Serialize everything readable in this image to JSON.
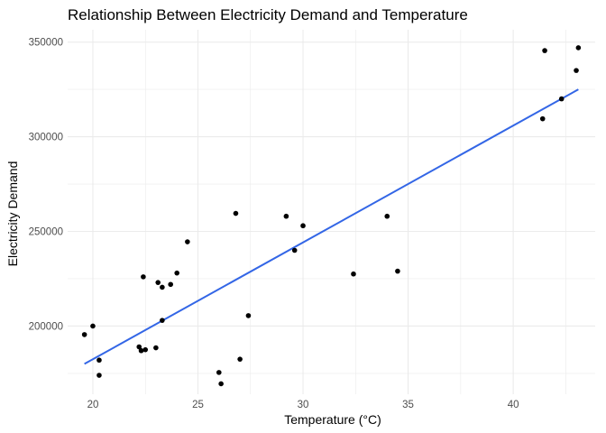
{
  "chart_data": {
    "type": "scatter",
    "title": "Relationship Between Electricity Demand and Temperature",
    "xlabel": "Temperature (°C)",
    "ylabel": "Electricity Demand",
    "xlim": [
      18.8,
      43.9
    ],
    "ylim": [
      164000,
      356500
    ],
    "x_ticks": [
      20,
      25,
      30,
      35,
      40
    ],
    "x_tick_labels": [
      "20",
      "25",
      "30",
      "35",
      "40"
    ],
    "y_ticks": [
      200000,
      250000,
      300000,
      350000
    ],
    "y_tick_labels": [
      "200000",
      "250000",
      "300000",
      "350000"
    ],
    "grid": true,
    "points": [
      {
        "x": 19.6,
        "y": 195500
      },
      {
        "x": 20.0,
        "y": 200000
      },
      {
        "x": 20.3,
        "y": 182000
      },
      {
        "x": 20.3,
        "y": 174000
      },
      {
        "x": 22.2,
        "y": 189000
      },
      {
        "x": 22.3,
        "y": 187000
      },
      {
        "x": 22.4,
        "y": 226000
      },
      {
        "x": 22.5,
        "y": 187500
      },
      {
        "x": 23.0,
        "y": 188500
      },
      {
        "x": 23.1,
        "y": 223000
      },
      {
        "x": 23.3,
        "y": 220500
      },
      {
        "x": 23.3,
        "y": 203000
      },
      {
        "x": 23.7,
        "y": 222000
      },
      {
        "x": 24.0,
        "y": 228000
      },
      {
        "x": 24.5,
        "y": 244500
      },
      {
        "x": 26.0,
        "y": 175500
      },
      {
        "x": 26.1,
        "y": 169500
      },
      {
        "x": 26.8,
        "y": 259500
      },
      {
        "x": 27.0,
        "y": 182500
      },
      {
        "x": 27.4,
        "y": 205500
      },
      {
        "x": 29.2,
        "y": 258000
      },
      {
        "x": 29.6,
        "y": 240000
      },
      {
        "x": 30.0,
        "y": 253000
      },
      {
        "x": 32.4,
        "y": 227500
      },
      {
        "x": 34.0,
        "y": 258000
      },
      {
        "x": 34.5,
        "y": 229000
      },
      {
        "x": 41.4,
        "y": 309500
      },
      {
        "x": 41.5,
        "y": 345500
      },
      {
        "x": 42.3,
        "y": 320000
      },
      {
        "x": 43.0,
        "y": 335000
      },
      {
        "x": 43.1,
        "y": 347000
      }
    ],
    "trend_line": {
      "x": [
        19.6,
        43.1
      ],
      "y": [
        180000,
        325000
      ],
      "color": "#3366e6"
    },
    "point_color": "#000000",
    "grid_color": "#ebebeb"
  }
}
